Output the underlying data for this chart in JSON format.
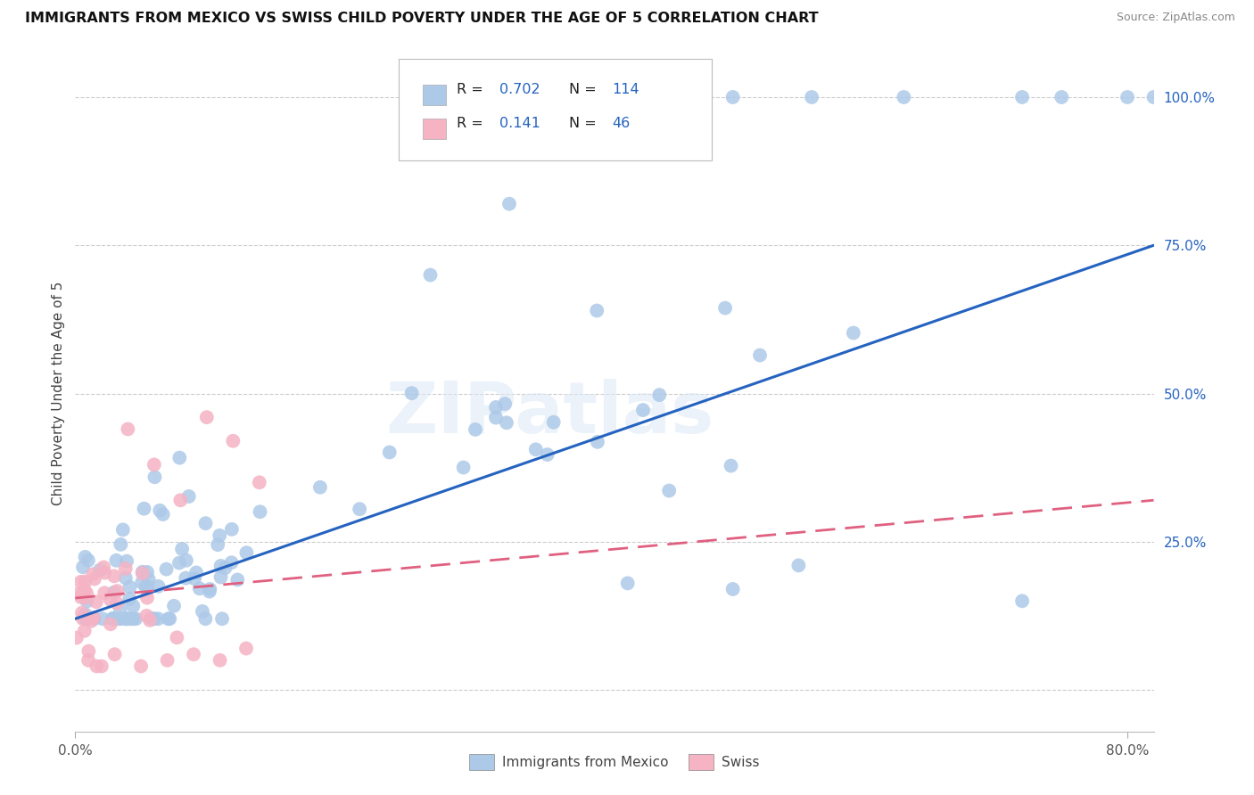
{
  "title": "IMMIGRANTS FROM MEXICO VS SWISS CHILD POVERTY UNDER THE AGE OF 5 CORRELATION CHART",
  "source": "Source: ZipAtlas.com",
  "ylabel": "Child Poverty Under the Age of 5",
  "blue_R": "0.702",
  "blue_N": "114",
  "pink_R": "0.141",
  "pink_N": "46",
  "blue_color": "#adc9e8",
  "pink_color": "#f5b3c4",
  "blue_line_color": "#2563c0",
  "pink_line_color": "#e06080",
  "watermark": "ZIPatlas",
  "legend_labels": [
    "Immigrants from Mexico",
    "Swiss"
  ],
  "xlim": [
    0.0,
    0.82
  ],
  "ylim": [
    -0.07,
    1.07
  ],
  "blue_line_x0": 0.0,
  "blue_line_y0": 0.12,
  "blue_line_x1": 0.82,
  "blue_line_y1": 0.75,
  "pink_line_x0": 0.0,
  "pink_line_y0": 0.155,
  "pink_line_x1": 0.82,
  "pink_line_y1": 0.32
}
